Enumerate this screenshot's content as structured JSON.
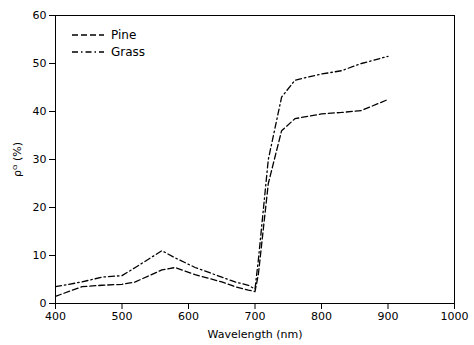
{
  "chart_data": {
    "type": "line",
    "xlabel": "Wavelength (nm)",
    "ylabel": "ρᴳ (%)",
    "x": [
      400,
      440,
      470,
      500,
      520,
      560,
      580,
      610,
      650,
      670,
      690,
      700,
      705,
      720,
      740,
      760,
      780,
      800,
      830,
      860,
      900
    ],
    "series": [
      {
        "name": "Pine",
        "color": "#000000",
        "line_style": "dashed",
        "values": [
          1.5,
          3.5,
          3.8,
          4.0,
          4.5,
          7.0,
          7.5,
          6.0,
          4.5,
          3.5,
          2.8,
          2.5,
          6.0,
          25.0,
          36.0,
          38.5,
          39.0,
          39.5,
          39.8,
          40.2,
          42.5
        ]
      },
      {
        "name": "Grass",
        "color": "#000000",
        "line_style": "dashdot",
        "values": [
          3.5,
          4.5,
          5.5,
          5.8,
          7.5,
          11.0,
          9.5,
          7.5,
          5.5,
          4.5,
          3.8,
          3.0,
          9.0,
          30.0,
          43.0,
          46.5,
          47.2,
          47.8,
          48.5,
          50.0,
          51.5
        ]
      }
    ],
    "xlim": [
      400,
      1000
    ],
    "ylim": [
      0,
      60
    ],
    "xticks": [
      400,
      500,
      600,
      700,
      800,
      900,
      1000
    ],
    "yticks": [
      0,
      10,
      20,
      30,
      40,
      50,
      60
    ],
    "grid": false,
    "legend": "upper left"
  }
}
